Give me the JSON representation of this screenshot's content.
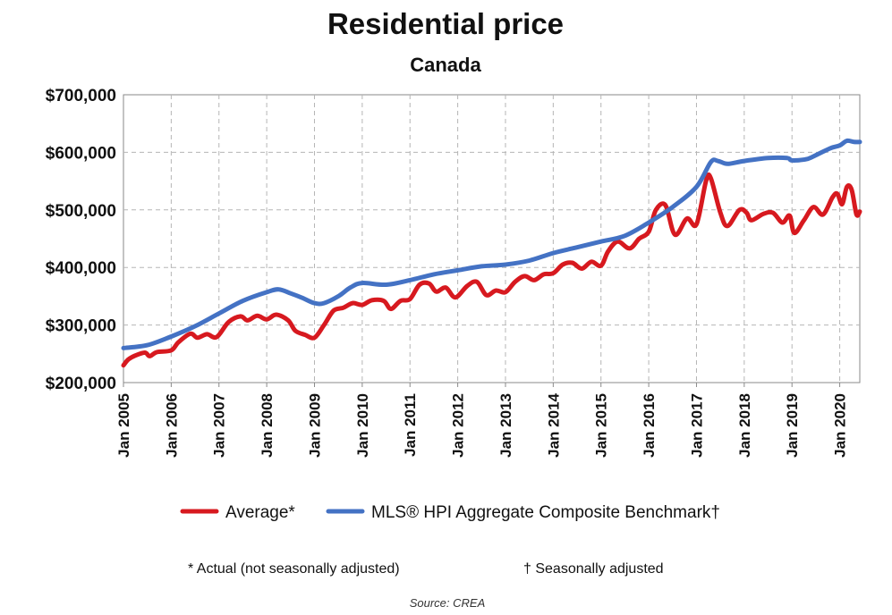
{
  "chart_data": {
    "type": "line",
    "title": "Residential price",
    "subtitle": "Canada",
    "xlabel": "",
    "ylabel": "",
    "ylim": [
      200000,
      700000
    ],
    "yticks": [
      200000,
      300000,
      400000,
      500000,
      600000,
      700000
    ],
    "ytick_labels": [
      "$200,000",
      "$300,000",
      "$400,000",
      "$500,000",
      "$600,000",
      "$700,000"
    ],
    "xlim": [
      2005.0,
      2020.42
    ],
    "xticks": [
      2005,
      2006,
      2007,
      2008,
      2009,
      2010,
      2011,
      2012,
      2013,
      2014,
      2015,
      2016,
      2017,
      2018,
      2019,
      2020
    ],
    "xtick_labels": [
      "Jan 2005",
      "Jan 2006",
      "Jan 2007",
      "Jan 2008",
      "Jan 2009",
      "Jan 2010",
      "Jan 2011",
      "Jan 2012",
      "Jan 2013",
      "Jan 2014",
      "Jan 2015",
      "Jan 2016",
      "Jan 2017",
      "Jan 2018",
      "Jan 2019",
      "Jan 2020"
    ],
    "grid": true,
    "legend_position": "bottom",
    "series": [
      {
        "name": "Average*",
        "color": "#d7191f",
        "points": [
          [
            2005.0,
            230000
          ],
          [
            2005.1,
            240000
          ],
          [
            2005.25,
            247000
          ],
          [
            2005.45,
            252000
          ],
          [
            2005.55,
            246000
          ],
          [
            2005.7,
            253000
          ],
          [
            2006.0,
            256000
          ],
          [
            2006.15,
            270000
          ],
          [
            2006.4,
            285000
          ],
          [
            2006.55,
            278000
          ],
          [
            2006.75,
            284000
          ],
          [
            2006.95,
            279000
          ],
          [
            2007.2,
            305000
          ],
          [
            2007.45,
            315000
          ],
          [
            2007.6,
            308000
          ],
          [
            2007.8,
            316000
          ],
          [
            2008.0,
            310000
          ],
          [
            2008.2,
            318000
          ],
          [
            2008.45,
            308000
          ],
          [
            2008.6,
            290000
          ],
          [
            2008.8,
            283000
          ],
          [
            2009.0,
            278000
          ],
          [
            2009.2,
            300000
          ],
          [
            2009.4,
            325000
          ],
          [
            2009.6,
            330000
          ],
          [
            2009.8,
            338000
          ],
          [
            2010.0,
            335000
          ],
          [
            2010.2,
            343000
          ],
          [
            2010.45,
            342000
          ],
          [
            2010.6,
            328000
          ],
          [
            2010.8,
            342000
          ],
          [
            2011.0,
            345000
          ],
          [
            2011.2,
            370000
          ],
          [
            2011.4,
            372000
          ],
          [
            2011.55,
            358000
          ],
          [
            2011.75,
            365000
          ],
          [
            2011.95,
            348000
          ],
          [
            2012.2,
            368000
          ],
          [
            2012.4,
            375000
          ],
          [
            2012.6,
            352000
          ],
          [
            2012.8,
            360000
          ],
          [
            2013.0,
            357000
          ],
          [
            2013.2,
            375000
          ],
          [
            2013.4,
            385000
          ],
          [
            2013.6,
            378000
          ],
          [
            2013.8,
            388000
          ],
          [
            2014.0,
            390000
          ],
          [
            2014.2,
            405000
          ],
          [
            2014.4,
            408000
          ],
          [
            2014.6,
            398000
          ],
          [
            2014.8,
            410000
          ],
          [
            2015.0,
            403000
          ],
          [
            2015.15,
            428000
          ],
          [
            2015.35,
            445000
          ],
          [
            2015.6,
            433000
          ],
          [
            2015.8,
            450000
          ],
          [
            2016.0,
            462000
          ],
          [
            2016.15,
            500000
          ],
          [
            2016.35,
            508000
          ],
          [
            2016.55,
            457000
          ],
          [
            2016.8,
            485000
          ],
          [
            2017.0,
            475000
          ],
          [
            2017.2,
            550000
          ],
          [
            2017.3,
            555000
          ],
          [
            2017.5,
            495000
          ],
          [
            2017.65,
            472000
          ],
          [
            2017.9,
            500000
          ],
          [
            2018.05,
            495000
          ],
          [
            2018.15,
            482000
          ],
          [
            2018.4,
            493000
          ],
          [
            2018.6,
            495000
          ],
          [
            2018.8,
            478000
          ],
          [
            2018.95,
            490000
          ],
          [
            2019.05,
            460000
          ],
          [
            2019.25,
            482000
          ],
          [
            2019.45,
            505000
          ],
          [
            2019.65,
            492000
          ],
          [
            2019.85,
            522000
          ],
          [
            2019.95,
            528000
          ],
          [
            2020.05,
            510000
          ],
          [
            2020.15,
            540000
          ],
          [
            2020.25,
            535000
          ],
          [
            2020.35,
            492000
          ],
          [
            2020.42,
            497000
          ]
        ]
      },
      {
        "name": "MLS® HPI Aggregate Composite Benchmark†",
        "color": "#4472c4",
        "points": [
          [
            2005.0,
            260000
          ],
          [
            2005.5,
            265000
          ],
          [
            2006.0,
            280000
          ],
          [
            2006.5,
            298000
          ],
          [
            2007.0,
            320000
          ],
          [
            2007.5,
            342000
          ],
          [
            2008.0,
            357000
          ],
          [
            2008.25,
            362000
          ],
          [
            2008.5,
            355000
          ],
          [
            2008.75,
            347000
          ],
          [
            2009.0,
            338000
          ],
          [
            2009.2,
            338000
          ],
          [
            2009.5,
            350000
          ],
          [
            2009.75,
            365000
          ],
          [
            2010.0,
            373000
          ],
          [
            2010.5,
            370000
          ],
          [
            2011.0,
            378000
          ],
          [
            2011.5,
            388000
          ],
          [
            2012.0,
            395000
          ],
          [
            2012.5,
            402000
          ],
          [
            2013.0,
            405000
          ],
          [
            2013.5,
            412000
          ],
          [
            2014.0,
            425000
          ],
          [
            2014.5,
            435000
          ],
          [
            2015.0,
            445000
          ],
          [
            2015.5,
            455000
          ],
          [
            2016.0,
            478000
          ],
          [
            2016.5,
            505000
          ],
          [
            2017.0,
            540000
          ],
          [
            2017.3,
            583000
          ],
          [
            2017.45,
            585000
          ],
          [
            2017.65,
            580000
          ],
          [
            2018.0,
            585000
          ],
          [
            2018.5,
            590000
          ],
          [
            2018.9,
            590000
          ],
          [
            2019.0,
            586000
          ],
          [
            2019.3,
            588000
          ],
          [
            2019.5,
            595000
          ],
          [
            2019.8,
            607000
          ],
          [
            2020.0,
            612000
          ],
          [
            2020.15,
            620000
          ],
          [
            2020.3,
            618000
          ],
          [
            2020.42,
            618000
          ]
        ]
      }
    ],
    "notes": {
      "actual": "* Actual (not seasonally adjusted)",
      "seasonal": "† Seasonally adjusted"
    },
    "source": "Source: CREA"
  }
}
